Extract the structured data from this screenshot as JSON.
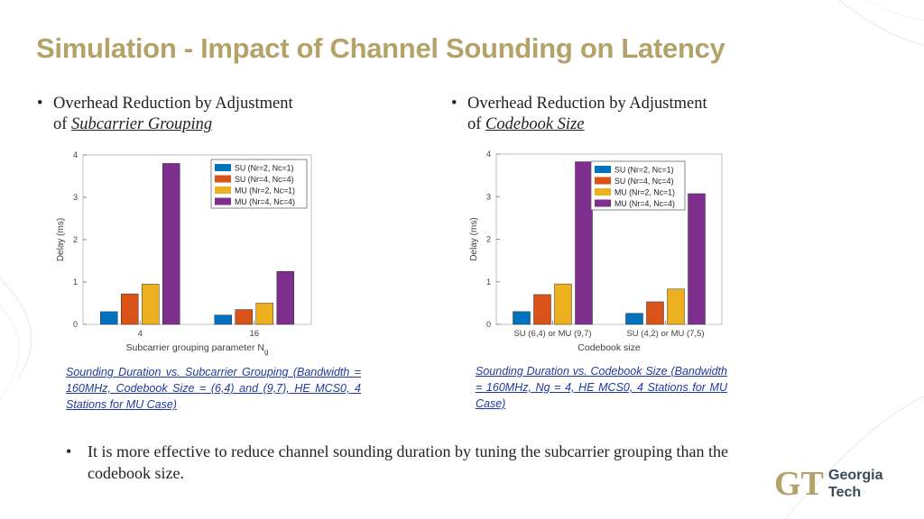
{
  "slide": {
    "title": "Simulation - Impact of Channel Sounding on Latency",
    "bullet_left": {
      "prefix": "Overhead Reduction by Adjustment",
      "of": "of",
      "emphasis": "Subcarrier Grouping"
    },
    "bullet_right": {
      "prefix": "Overhead Reduction by Adjustment",
      "of": "of",
      "emphasis": "Codebook Size"
    },
    "caption_left": "Sounding Duration vs. Subcarrier Grouping (Bandwidth = 160MHz, Codebook Size = (6,4) and (9,7), HE MCS0, 4 Stations for MU Case)",
    "caption_right": "Sounding Duration vs. Codebook Size (Bandwidth = 160MHz, Ng = 4, HE MCS0, 4 Stations for MU Case)",
    "conclusion": "It is more effective to reduce channel sounding duration by tuning the subcarrier grouping than the codebook size.",
    "bullet_symbol": "•",
    "logo": {
      "line1": "Georgia",
      "line2": "Tech",
      "mark": "GT",
      "color": "#B3A369",
      "text_color": "#3a4a5a"
    }
  },
  "chart_data": [
    {
      "type": "bar",
      "categories": [
        "4",
        "16"
      ],
      "xlabel": "Subcarrier grouping parameter N",
      "xlabel_sub": "g",
      "ylabel": "Delay (ms)",
      "ylim": [
        0,
        4
      ],
      "yticks": [
        "0",
        "1",
        "2",
        "3",
        "4"
      ],
      "legend_position": "top-right",
      "series": [
        {
          "name": "SU (Nr=2, Nc=1)",
          "color": "#0072BD",
          "values": [
            0.3,
            0.22
          ]
        },
        {
          "name": "SU (Nr=4, Nc=4)",
          "color": "#D95319",
          "values": [
            0.72,
            0.35
          ]
        },
        {
          "name": "MU (Nr=2, Nc=1)",
          "color": "#EDB120",
          "values": [
            0.95,
            0.5
          ]
        },
        {
          "name": "MU (Nr=4, Nc=4)",
          "color": "#7E2F8E",
          "values": [
            3.8,
            1.25
          ]
        }
      ]
    },
    {
      "type": "bar",
      "categories": [
        "SU (6,4) or MU (9,7)",
        "SU (4,2) or MU (7,5)"
      ],
      "xlabel": "Codebook size",
      "ylabel": "Delay (ms)",
      "ylim": [
        0,
        4
      ],
      "yticks": [
        "0",
        "1",
        "2",
        "3",
        "4"
      ],
      "legend_position": "top-right",
      "series": [
        {
          "name": "SU (Nr=2, Nc=1)",
          "color": "#0072BD",
          "values": [
            0.3,
            0.26
          ]
        },
        {
          "name": "SU (Nr=4, Nc=4)",
          "color": "#D95319",
          "values": [
            0.7,
            0.53
          ]
        },
        {
          "name": "MU (Nr=2, Nc=1)",
          "color": "#EDB120",
          "values": [
            0.95,
            0.83
          ]
        },
        {
          "name": "MU (Nr=4, Nc=4)",
          "color": "#7E2F8E",
          "values": [
            3.82,
            3.07
          ]
        }
      ]
    }
  ]
}
